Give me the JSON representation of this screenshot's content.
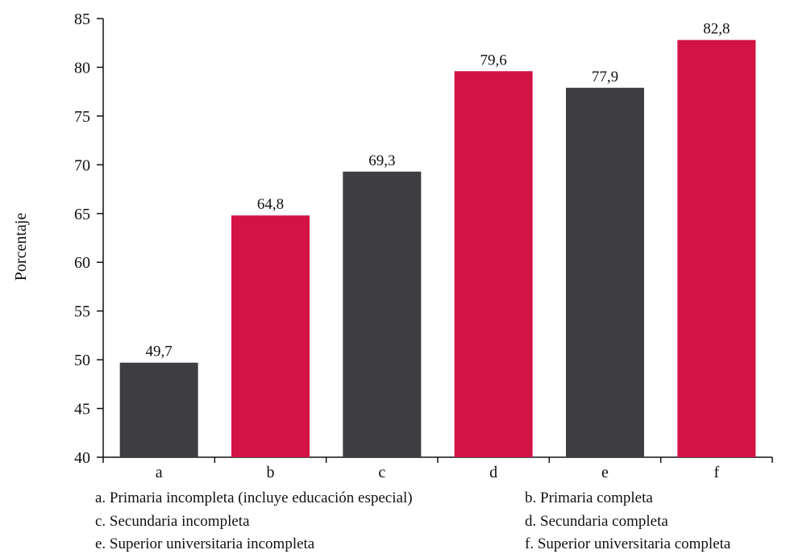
{
  "chart_data": {
    "type": "bar",
    "title": "",
    "xlabel": "",
    "ylabel": "Porcentaje",
    "ylim": [
      40,
      85
    ],
    "yticks": [
      40,
      45,
      50,
      55,
      60,
      65,
      70,
      75,
      80,
      85
    ],
    "categories": [
      "a",
      "b",
      "c",
      "d",
      "e",
      "f"
    ],
    "values": [
      49.7,
      64.8,
      69.3,
      79.6,
      77.9,
      82.8
    ],
    "value_labels": [
      "49,7",
      "64,8",
      "69,3",
      "79,6",
      "77,9",
      "82,8"
    ],
    "bar_colors": [
      "#3e3e42",
      "#d31245",
      "#3e3e42",
      "#d31245",
      "#3e3e42",
      "#d31245"
    ],
    "grid": false,
    "legend": [
      "a. Primaria incompleta (incluye educación especial)",
      "b. Primaria completa",
      "c. Secundaria incompleta",
      "d. Secundaria completa",
      "e. Superior universitaria incompleta",
      "f. Superior universitaria completa"
    ]
  }
}
